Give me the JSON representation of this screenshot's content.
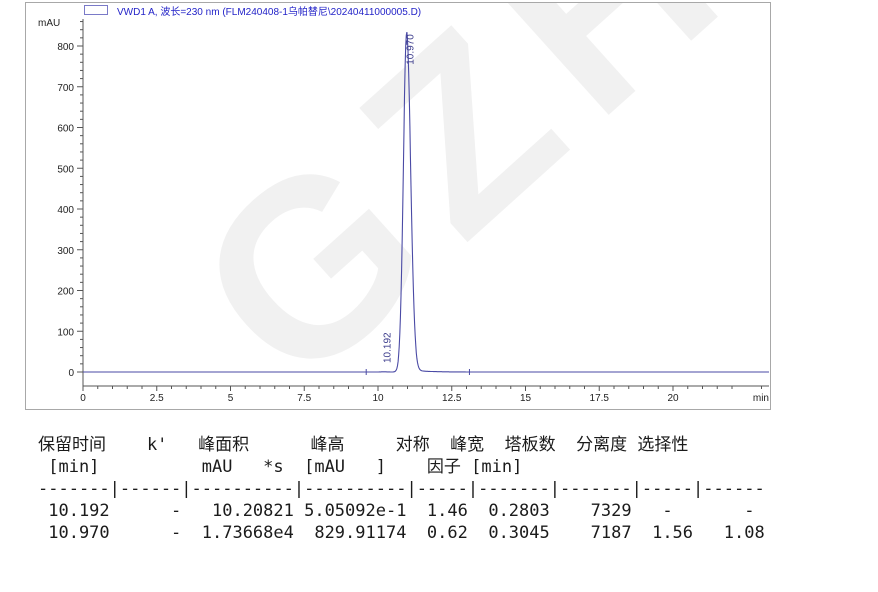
{
  "watermark": {
    "text": "GZHL"
  },
  "legend": {
    "label": "VWD1 A, 波长=230 nm (FLM240408-1乌帕替尼\\20240411000005.D)"
  },
  "chart_data": {
    "type": "line",
    "title": "",
    "signal": "VWD1 A, 波长=230 nm (FLM240408-1乌帕替尼\\20240411000005.D)",
    "xlabel": "min",
    "ylabel": "mAU",
    "xlim": [
      0,
      23.25
    ],
    "ylim": [
      0,
      870
    ],
    "x_major_ticks": [
      0,
      2.5,
      5,
      7.5,
      10,
      12.5,
      15,
      17.5,
      20
    ],
    "x_minor_step": 0.5,
    "y_major_ticks": [
      0,
      100,
      200,
      300,
      400,
      500,
      600,
      700,
      800
    ],
    "y_minor_step": 20,
    "grid": false,
    "legend_position": "top-left",
    "peaks": [
      {
        "rt": 10.192,
        "height_mau": 0.505092,
        "area_mau_s": 10.20821,
        "half_width_min": 0.2803,
        "label": "10.192"
      },
      {
        "rt": 10.97,
        "height_mau": 829.91174,
        "area_mau_s": 17366.8,
        "half_width_min": 0.3045,
        "label": "10.970"
      }
    ],
    "integration_marks_min": [
      9.6,
      13.1
    ],
    "line_color": "#4a4aa5",
    "label_color": "#3c3c8c",
    "axis_color": "#555555",
    "tick_label_color": "#222222",
    "legend_color": "#2323c8"
  },
  "table": {
    "columns": [
      {
        "title": "保留时间",
        "unit": "[min]"
      },
      {
        "title": "k'",
        "unit": ""
      },
      {
        "title": "峰面积",
        "unit": "mAU   *s"
      },
      {
        "title": "峰高",
        "unit": "[mAU   ]"
      },
      {
        "title": "对称因子",
        "unit": ""
      },
      {
        "title": "峰宽",
        "unit": "[min]"
      },
      {
        "title": "塔板数",
        "unit": ""
      },
      {
        "title": "分离度",
        "unit": ""
      },
      {
        "title": "选择性",
        "unit": ""
      }
    ],
    "rows": [
      [
        "10.192",
        "-",
        "10.20821",
        "5.05092e-1",
        "1.46",
        "0.2803",
        "7329",
        "-",
        "-"
      ],
      [
        "10.970",
        "-",
        "1.73668e4",
        "829.91174",
        "0.62",
        "0.3045",
        "7187",
        "1.56",
        "1.08"
      ]
    ],
    "text": "保留时间    k'   峰面积      峰高     对称  峰宽  塔板数  分离度 选择性\n [min]          mAU   *s  [mAU   ]    因子 [min]\n-------|------|----------|----------|-----|-------|-------|-----|------\n 10.192      -   10.20821 5.05092e-1  1.46  0.2803    7329   -       - \n 10.970      -  1.73668e4  829.91174  0.62  0.3045    7187  1.56   1.08"
  }
}
